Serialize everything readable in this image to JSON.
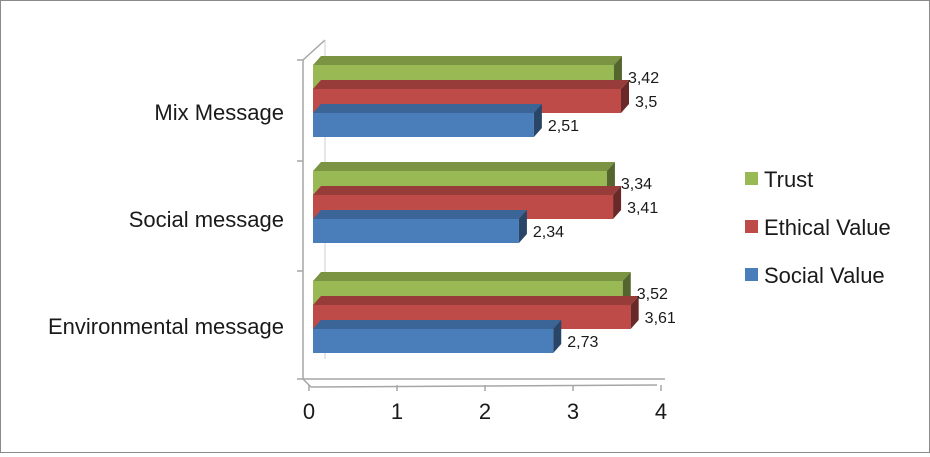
{
  "chart_data": {
    "type": "bar",
    "orientation": "horizontal",
    "style": "3d-clustered",
    "categories": [
      "Environmental message",
      "Social message",
      "Mix Message"
    ],
    "series": [
      {
        "name": "Social Value",
        "color": "#4a7ebb",
        "values": [
          2.73,
          2.34,
          2.51
        ],
        "labels": [
          "2,73",
          "2,34",
          "2,51"
        ]
      },
      {
        "name": "Ethical Value",
        "color": "#be4b48",
        "values": [
          3.61,
          3.41,
          3.5
        ],
        "labels": [
          "3,61",
          "3,41",
          "3,5"
        ]
      },
      {
        "name": "Trust",
        "color": "#98b954",
        "values": [
          3.52,
          3.34,
          3.42
        ],
        "labels": [
          "3,52",
          "3,34",
          "3,42"
        ]
      }
    ],
    "xlim": [
      0,
      4
    ],
    "xticks": [
      0,
      1,
      2,
      3,
      4
    ],
    "xtick_labels": [
      "0",
      "1",
      "2",
      "3",
      "4"
    ],
    "legend_order": [
      "Trust",
      "Ethical Value",
      "Social Value"
    ],
    "legend_position": "right",
    "grid": false
  }
}
